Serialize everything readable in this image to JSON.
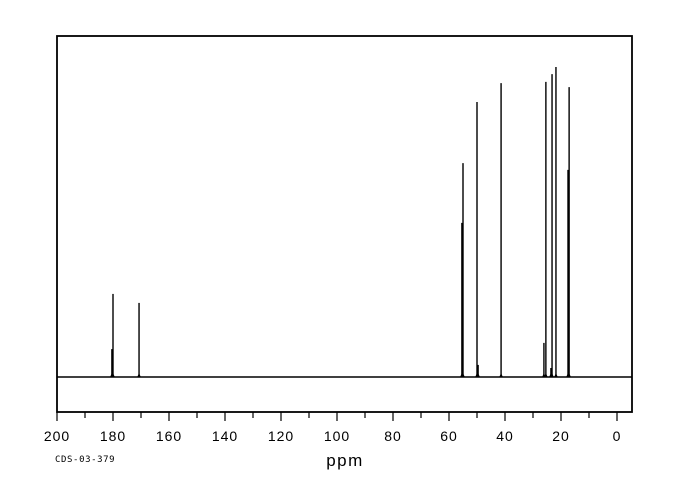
{
  "sample_id": "CDS-03-379",
  "chart_data": {
    "type": "line",
    "subtype": "nmr-stick-spectrum",
    "title": "",
    "xlabel": "ppm",
    "ylabel": "",
    "x_axis": {
      "min": 0,
      "max": 200,
      "reversed": true,
      "major_tick_step": 20,
      "minor_tick_step": 10,
      "tick_labels": [
        "200",
        "180",
        "160",
        "140",
        "120",
        "100",
        "80",
        "60",
        "40",
        "20",
        "0"
      ]
    },
    "y_axis": {
      "visible": false
    },
    "grid": false,
    "legend": false,
    "colors": {
      "line": "#000000",
      "frame": "#000000",
      "text": "#000000",
      "background": "#ffffff"
    },
    "peaks": [
      {
        "ppm": 180.4,
        "intensity": 0.09
      },
      {
        "ppm": 180.0,
        "intensity": 0.268
      },
      {
        "ppm": 170.7,
        "intensity": 0.239
      },
      {
        "ppm": 55.4,
        "intensity": 0.497
      },
      {
        "ppm": 55.0,
        "intensity": 0.69
      },
      {
        "ppm": 50.0,
        "intensity": 0.887
      },
      {
        "ppm": 49.6,
        "intensity": 0.039
      },
      {
        "ppm": 41.4,
        "intensity": 0.948
      },
      {
        "ppm": 26.1,
        "intensity": 0.11
      },
      {
        "ppm": 25.4,
        "intensity": 0.952
      },
      {
        "ppm": 23.6,
        "intensity": 0.029
      },
      {
        "ppm": 23.2,
        "intensity": 0.977
      },
      {
        "ppm": 21.8,
        "intensity": 1.0
      },
      {
        "ppm": 17.5,
        "intensity": 0.668
      },
      {
        "ppm": 17.1,
        "intensity": 0.935
      }
    ]
  }
}
